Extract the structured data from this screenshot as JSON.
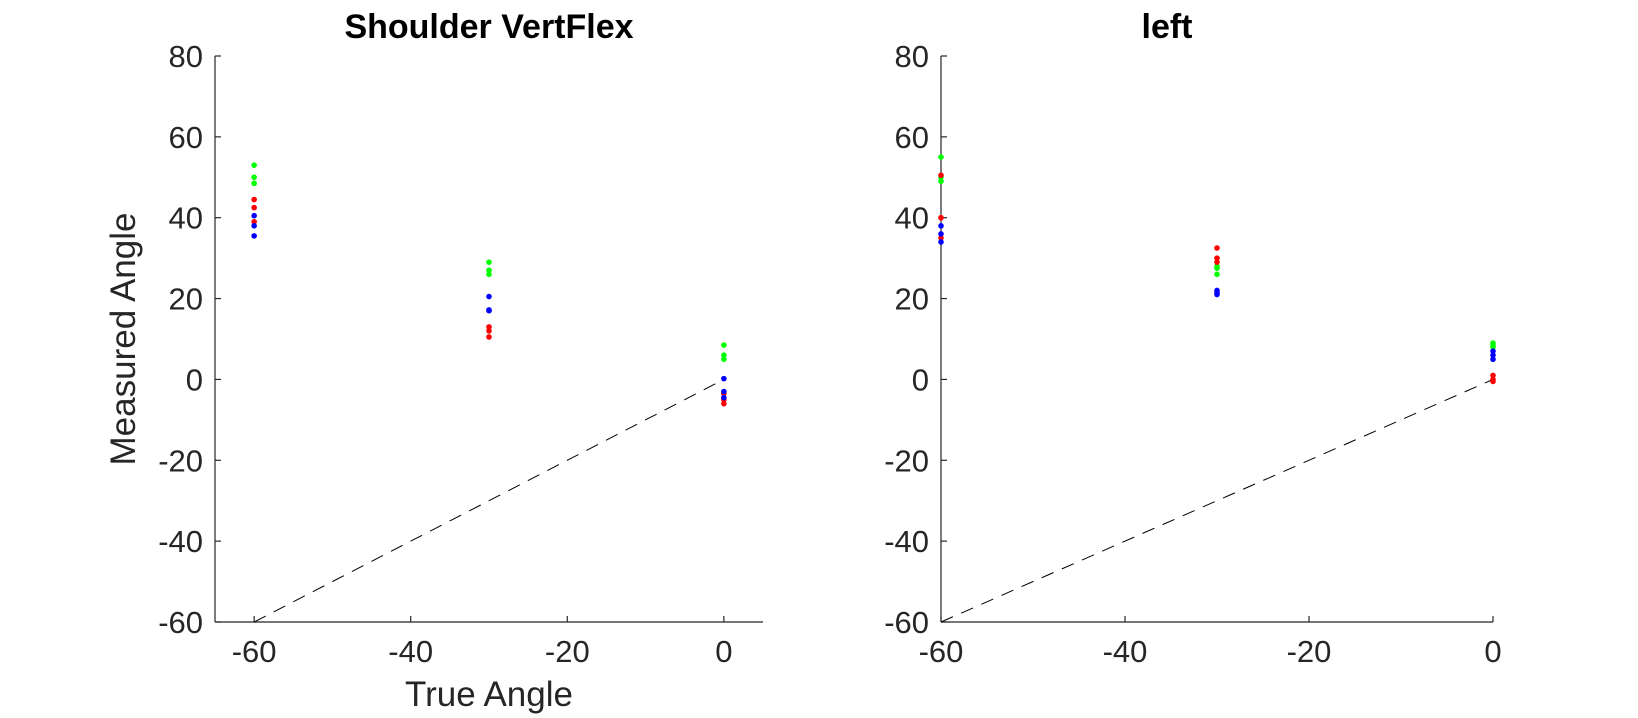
{
  "chart_data": [
    {
      "type": "scatter",
      "title": "Shoulder VertFlex",
      "xlabel": "True Angle",
      "ylabel": "Measured Angle",
      "xlim": [
        -65,
        5
      ],
      "ylim": [
        -60,
        80
      ],
      "xticks": [
        -60,
        -40,
        -20,
        0
      ],
      "yticks": [
        -60,
        -40,
        -20,
        0,
        20,
        40,
        60,
        80
      ],
      "grid": false,
      "reference_line": {
        "x": [
          -60,
          0
        ],
        "y": [
          -60,
          0
        ],
        "style": "dashed",
        "color": "#000000"
      },
      "series": [
        {
          "color": "#00ff00",
          "x": [
            -60,
            -60,
            -60,
            -30,
            -30,
            -30,
            0,
            0,
            0
          ],
          "y": [
            53,
            50,
            48.5,
            29,
            27,
            26,
            8.5,
            6,
            5
          ]
        },
        {
          "color": "#ff0000",
          "x": [
            -60,
            -60,
            -60,
            -30,
            -30,
            -30,
            0,
            0,
            0
          ],
          "y": [
            44.5,
            42.5,
            39,
            13,
            12,
            10.5,
            -3.5,
            -5,
            -6
          ]
        },
        {
          "color": "#0000ff",
          "x": [
            -60,
            -60,
            -60,
            -30,
            -30,
            -30,
            0,
            0,
            0
          ],
          "y": [
            40.5,
            38,
            35.5,
            20.5,
            17,
            17.2,
            0.2,
            -3,
            -4.5
          ]
        }
      ]
    },
    {
      "type": "scatter",
      "title": "left",
      "xlabel": "",
      "ylabel": "",
      "xlim": [
        -60,
        0
      ],
      "ylim": [
        -60,
        80
      ],
      "xticks": [
        -60,
        -40,
        -20,
        0
      ],
      "yticks": [
        -60,
        -40,
        -20,
        0,
        20,
        40,
        60,
        80
      ],
      "grid": false,
      "reference_line": {
        "x": [
          -60,
          0
        ],
        "y": [
          -60,
          0
        ],
        "style": "dashed",
        "color": "#000000"
      },
      "series": [
        {
          "color": "#00ff00",
          "x": [
            -60,
            -60,
            -60,
            -30,
            -30,
            -30,
            0,
            0,
            0
          ],
          "y": [
            55,
            50,
            49,
            28,
            26,
            27.5,
            9,
            8,
            8.5
          ]
        },
        {
          "color": "#ff0000",
          "x": [
            -60,
            -60,
            -60,
            -30,
            -30,
            -30,
            0,
            0,
            0
          ],
          "y": [
            50.5,
            40,
            35,
            32.5,
            30,
            29,
            1,
            0,
            -0.5
          ]
        },
        {
          "color": "#0000ff",
          "x": [
            -60,
            -60,
            -60,
            -30,
            -30,
            -30,
            0,
            0,
            0
          ],
          "y": [
            38,
            36,
            34,
            22,
            21.5,
            21,
            7,
            6,
            5
          ]
        }
      ]
    }
  ]
}
